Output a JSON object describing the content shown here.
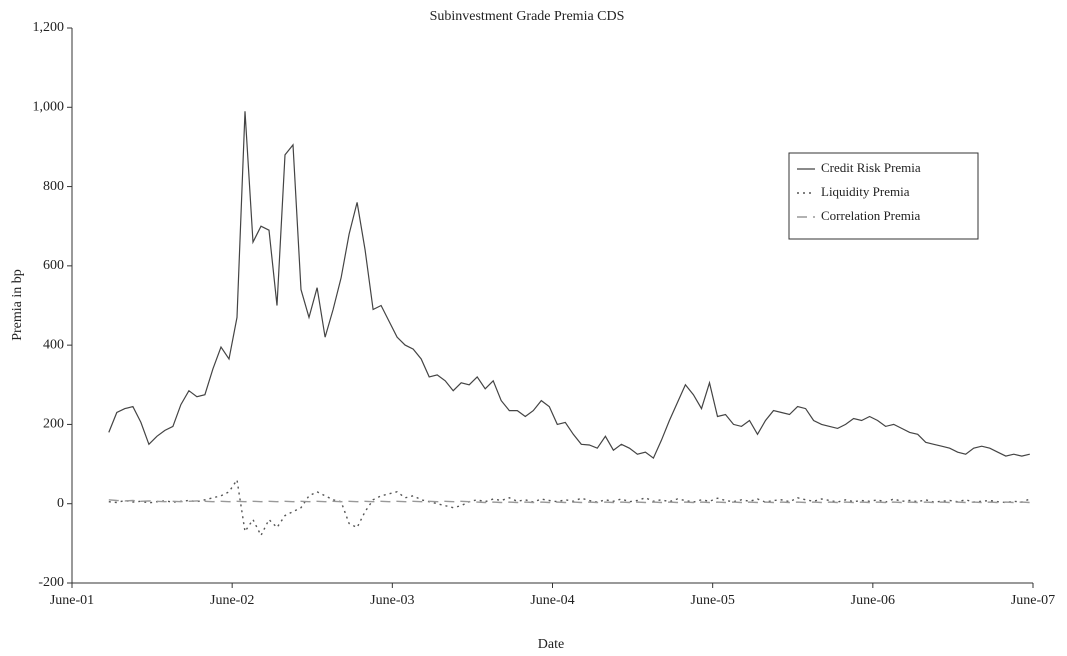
{
  "chart_data": {
    "type": "line",
    "title": "Subinvestment Grade Premia CDS",
    "x_label": "Date",
    "y_label": "Premia in bp",
    "xlim": [
      2001.42,
      2007.42
    ],
    "xticks": [
      {
        "value": 2001.42,
        "label": "June-01"
      },
      {
        "value": 2002.42,
        "label": "June-02"
      },
      {
        "value": 2003.42,
        "label": "June-03"
      },
      {
        "value": 2004.42,
        "label": "June-04"
      },
      {
        "value": 2005.42,
        "label": "June-05"
      },
      {
        "value": 2006.42,
        "label": "June-06"
      },
      {
        "value": 2007.42,
        "label": "June-07"
      }
    ],
    "ylim": [
      -200,
      1200
    ],
    "yticks": [
      -200,
      0,
      200,
      400,
      600,
      800,
      {
        "value": 1000,
        "label": "1,000"
      },
      {
        "value": 1200,
        "label": "1,200"
      }
    ],
    "grid": false,
    "legend": "right",
    "x": [
      2001.65,
      2001.7,
      2001.75,
      2001.8,
      2001.85,
      2001.9,
      2001.95,
      2002,
      2002.05,
      2002.1,
      2002.15,
      2002.2,
      2002.25,
      2002.3,
      2002.35,
      2002.4,
      2002.45,
      2002.5,
      2002.55,
      2002.6,
      2002.65,
      2002.7,
      2002.75,
      2002.8,
      2002.85,
      2002.9,
      2002.95,
      2003,
      2003.05,
      2003.1,
      2003.15,
      2003.2,
      2003.25,
      2003.3,
      2003.35,
      2003.4,
      2003.45,
      2003.5,
      2003.55,
      2003.6,
      2003.65,
      2003.7,
      2003.75,
      2003.8,
      2003.85,
      2003.9,
      2003.95,
      2004,
      2004.05,
      2004.1,
      2004.15,
      2004.2,
      2004.25,
      2004.3,
      2004.35,
      2004.4,
      2004.45,
      2004.5,
      2004.55,
      2004.6,
      2004.65,
      2004.7,
      2004.75,
      2004.8,
      2004.85,
      2004.9,
      2004.95,
      2005,
      2005.05,
      2005.1,
      2005.15,
      2005.2,
      2005.25,
      2005.3,
      2005.35,
      2005.4,
      2005.45,
      2005.5,
      2005.55,
      2005.6,
      2005.65,
      2005.7,
      2005.75,
      2005.8,
      2005.85,
      2005.9,
      2005.95,
      2006,
      2006.05,
      2006.1,
      2006.15,
      2006.2,
      2006.25,
      2006.3,
      2006.35,
      2006.4,
      2006.45,
      2006.5,
      2006.55,
      2006.6,
      2006.65,
      2006.7,
      2006.75,
      2006.8,
      2006.85,
      2006.9,
      2006.95,
      2007,
      2007.05,
      2007.1,
      2007.15,
      2007.2,
      2007.25,
      2007.3,
      2007.35,
      2007.4
    ],
    "series": [
      {
        "name": "Credit Risk Premia",
        "color": "#444444",
        "dash": "none",
        "width": 1.2,
        "values": [
          180,
          230,
          240,
          245,
          205,
          150,
          170,
          185,
          195,
          250,
          285,
          270,
          275,
          340,
          395,
          365,
          470,
          990,
          660,
          700,
          690,
          500,
          880,
          905,
          540,
          470,
          545,
          420,
          490,
          570,
          680,
          760,
          640,
          490,
          500,
          460,
          420,
          400,
          390,
          365,
          320,
          325,
          310,
          285,
          305,
          300,
          320,
          290,
          310,
          260,
          235,
          235,
          220,
          235,
          260,
          245,
          200,
          205,
          175,
          150,
          148,
          140,
          170,
          135,
          150,
          140,
          125,
          130,
          115,
          160,
          210,
          255,
          300,
          275,
          240,
          305,
          220,
          225,
          200,
          195,
          210,
          175,
          210,
          235,
          230,
          225,
          245,
          240,
          210,
          200,
          195,
          190,
          200,
          215,
          210,
          220,
          210,
          195,
          200,
          190,
          180,
          175,
          155,
          150,
          145,
          140,
          130,
          125,
          140,
          145,
          140,
          130,
          120,
          125,
          120,
          125
        ]
      },
      {
        "name": "Liquidity Premia",
        "color": "#555555",
        "dash": "2,4",
        "width": 1.4,
        "values": [
          5,
          3,
          8,
          4,
          6,
          2,
          5,
          7,
          4,
          6,
          8,
          5,
          10,
          15,
          20,
          30,
          60,
          -70,
          -40,
          -80,
          -40,
          -60,
          -30,
          -20,
          -10,
          20,
          30,
          20,
          10,
          5,
          -50,
          -60,
          -20,
          10,
          20,
          25,
          30,
          15,
          20,
          10,
          5,
          0,
          -5,
          -10,
          -5,
          5,
          10,
          5,
          12,
          8,
          15,
          6,
          10,
          4,
          12,
          8,
          5,
          10,
          6,
          14,
          8,
          4,
          10,
          6,
          12,
          5,
          8,
          15,
          6,
          10,
          5,
          12,
          8,
          4,
          10,
          6,
          14,
          8,
          5,
          10,
          6,
          12,
          4,
          8,
          10,
          5,
          15,
          10,
          6,
          12,
          8,
          4,
          10,
          5,
          8,
          6,
          10,
          4,
          12,
          6,
          8,
          5,
          10,
          4,
          6,
          8,
          5,
          10,
          4,
          6,
          8,
          5,
          3,
          6,
          4,
          12
        ]
      },
      {
        "name": "Correlation Premia",
        "color": "#999999",
        "dash": "10,6",
        "width": 1.4,
        "values": [
          10,
          8,
          7,
          8,
          6,
          7,
          6,
          5,
          6,
          5,
          6,
          7,
          6,
          5,
          6,
          5,
          6,
          5,
          6,
          5,
          6,
          5,
          6,
          5,
          6,
          5,
          6,
          5,
          6,
          5,
          6,
          5,
          6,
          5,
          6,
          5,
          6,
          5,
          6,
          5,
          6,
          5,
          6,
          5,
          6,
          5,
          4,
          3,
          4,
          3,
          4,
          3,
          4,
          3,
          4,
          3,
          4,
          3,
          4,
          3,
          4,
          3,
          4,
          3,
          4,
          3,
          4,
          3,
          4,
          3,
          4,
          3,
          4,
          3,
          4,
          3,
          4,
          3,
          4,
          3,
          4,
          3,
          4,
          3,
          4,
          3,
          4,
          3,
          4,
          3,
          4,
          3,
          4,
          3,
          4,
          3,
          4,
          3,
          4,
          3,
          4,
          3,
          4,
          3,
          4,
          3,
          4,
          3,
          4,
          3,
          4,
          3,
          4,
          3,
          4,
          3
        ]
      }
    ]
  }
}
